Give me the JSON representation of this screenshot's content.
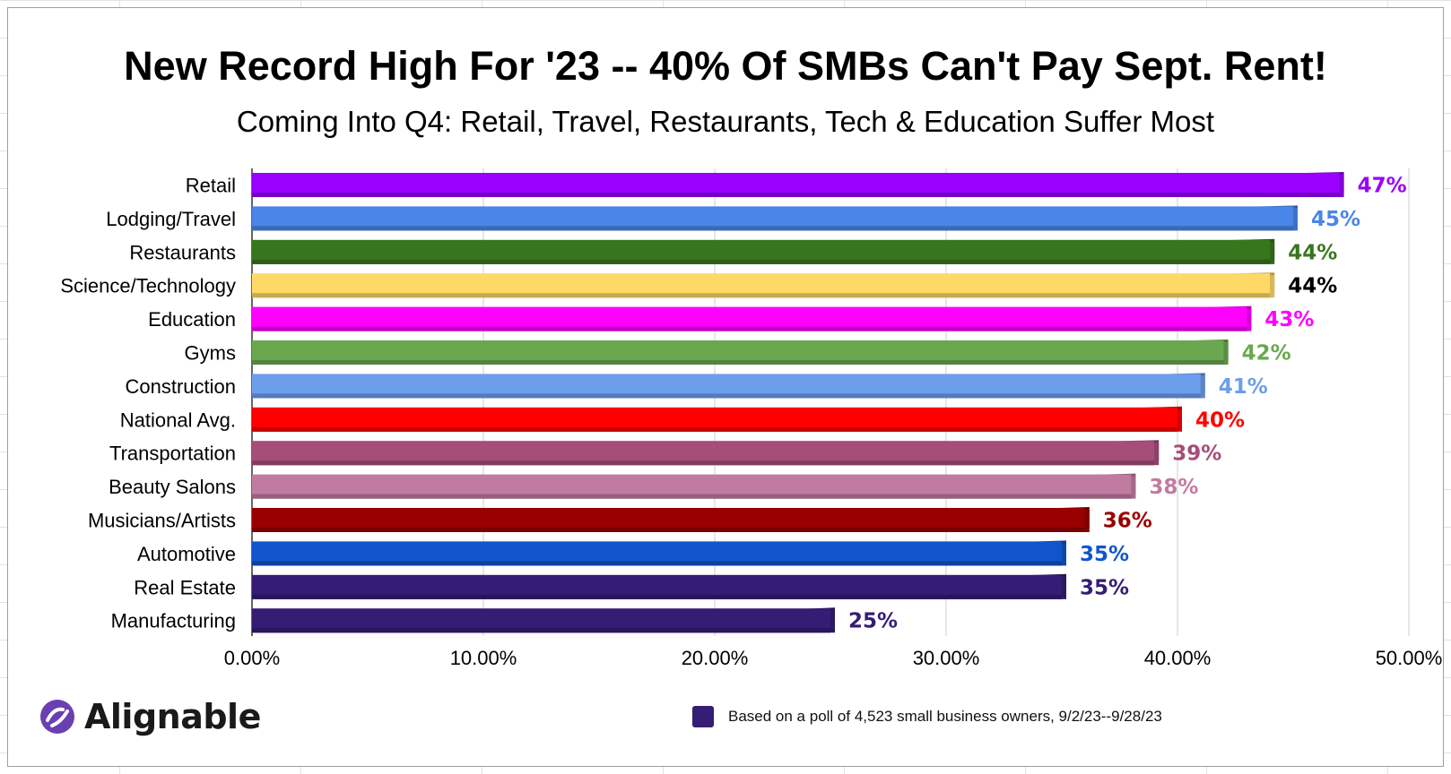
{
  "chart_data": {
    "type": "bar",
    "orientation": "horizontal",
    "title": "New Record High For '23 -- 40% Of SMBs Can't Pay Sept. Rent!",
    "subtitle": "Coming Into Q4: Retail, Travel, Restaurants, Tech &  Education Suffer Most",
    "categories": [
      "Retail",
      "Lodging/Travel",
      "Restaurants",
      "Science/Technology",
      "Education",
      "Gyms",
      "Construction",
      "National Avg.",
      "Transportation",
      "Beauty Salons",
      "Musicians/Artists",
      "Automotive",
      "Real Estate",
      "Manufacturing"
    ],
    "values": [
      47,
      45,
      44,
      44,
      43,
      42,
      41,
      40,
      39,
      38,
      36,
      35,
      35,
      25
    ],
    "value_labels": [
      "47%",
      "45%",
      "44%",
      "44%",
      "43%",
      "42%",
      "41%",
      "40%",
      "39%",
      "38%",
      "36%",
      "35%",
      "35%",
      "25%"
    ],
    "bar_colors": [
      "#9900ff",
      "#4a86e8",
      "#38761d",
      "#ffd966",
      "#ff00ff",
      "#6aa84f",
      "#6d9eeb",
      "#ff0000",
      "#a64d79",
      "#c27ba0",
      "#990000",
      "#1155cc",
      "#351c75",
      "#351c75"
    ],
    "label_colors": [
      "#9900ff",
      "#4a86e8",
      "#38761d",
      "#000000",
      "#ff00ff",
      "#6aa84f",
      "#6d9eeb",
      "#ff0000",
      "#a64d79",
      "#c27ba0",
      "#990000",
      "#1155cc",
      "#351c75",
      "#351c75"
    ],
    "xlim": [
      0,
      50
    ],
    "x_ticks": [
      0,
      10,
      20,
      30,
      40,
      50
    ],
    "x_tick_labels": [
      "0.00%",
      "10.00%",
      "20.00%",
      "30.00%",
      "40.00%",
      "50.00%"
    ],
    "grid": true,
    "legend": {
      "position": "bottom",
      "entries": [
        {
          "label": "Based on a poll of 4,523 small business owners, 9/2/23--9/28/23",
          "color": "#351c75"
        }
      ]
    }
  },
  "logo": {
    "text": "Alignable",
    "color": "#6a3fb2"
  }
}
